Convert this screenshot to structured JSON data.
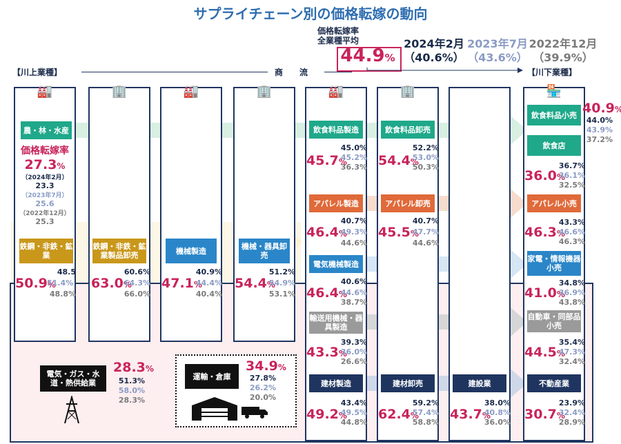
{
  "title": "サプライチェーン別の価格転嫁の動向",
  "average": {
    "label_line1": "価格転嫁率",
    "label_line2": "全業種平均",
    "value": "44.9",
    "unit": "%"
  },
  "periods": [
    {
      "label": "2024年2月",
      "value": "（40.6%）",
      "color": "#1a2a4a"
    },
    {
      "label": "2023年7月",
      "value": "（43.6%）",
      "color": "#8a9bc4"
    },
    {
      "label": "2022年12月",
      "value": "（39.9%）",
      "color": "#7a7a7a"
    }
  ],
  "flow": {
    "upstream": "【川上業種】",
    "middle": "商　　流",
    "downstream": "【川下業種】"
  },
  "legend": {
    "title": "価格転嫁率",
    "big": "27.3",
    "unit": "%",
    "l1": "（2024年2月）",
    "v1": "23.3",
    "l2": "（2023年7月）",
    "v2": "25.6",
    "l3": "（2022年12月）",
    "v3": "25.3"
  },
  "industries": {
    "agri": {
      "name": "農・林・水産"
    },
    "steel": {
      "name": "鉄鋼・非鉄・鉱業",
      "big": "50.9",
      "v24": "48.5",
      "v23": "51.4%",
      "v22": "48.8%"
    },
    "steel_ws": {
      "name": "鉄鋼・非鉄・鉱業製品卸売",
      "big": "63.0",
      "v24": "60.6%",
      "v23": "64.3%",
      "v22": "66.0%"
    },
    "machinery": {
      "name": "機械製造",
      "big": "47.1",
      "v24": "40.9%",
      "v23": "44.4%",
      "v22": "40.4%"
    },
    "machinery_ws": {
      "name": "機械・器具卸売",
      "big": "54.4",
      "v24": "51.2%",
      "v23": "54.9%",
      "v22": "53.1%"
    },
    "food_mfg": {
      "name": "飲食料品製造",
      "big": "45.7",
      "v24": "45.0%",
      "v23": "45.2%",
      "v22": "36.3%"
    },
    "food_ws": {
      "name": "飲食料品卸売",
      "big": "54.4",
      "v24": "52.2%",
      "v23": "53.0%",
      "v22": "50.3%"
    },
    "food_rt": {
      "name": "飲食料品小売",
      "big": "40.9",
      "v24": "44.0%",
      "v23": "43.9%",
      "v22": "37.2%"
    },
    "restaurant": {
      "name": "飲食店",
      "big": "36.0",
      "v24": "36.7%",
      "v23": "36.1%",
      "v22": "32.5%"
    },
    "apparel_mfg": {
      "name": "アパレル製造",
      "big": "46.4",
      "v24": "40.7%",
      "v23": "49.3%",
      "v22": "44.6%"
    },
    "apparel_ws": {
      "name": "アパレル卸売",
      "big": "45.5",
      "v24": "40.7%",
      "v23": "47.7%",
      "v22": "44.6%"
    },
    "apparel_rt": {
      "name": "アパレル小売",
      "big": "46.3",
      "v24": "43.3%",
      "v23": "46.6%",
      "v22": "46.3%"
    },
    "elec_mfg": {
      "name": "電気機械製造",
      "big": "46.4",
      "v24": "40.6%",
      "v23": "44.6%",
      "v22": "38.7%"
    },
    "elec_rt": {
      "name": "家電・情報機器小売",
      "big": "41.0",
      "v24": "34.8%",
      "v23": "36.9%",
      "v22": "43.8%"
    },
    "transport_mfg": {
      "name": "輸送用機械・器具製造",
      "big": "43.3",
      "v24": "39.3%",
      "v23": "36.0%",
      "v22": "26.6%"
    },
    "auto_rt": {
      "name": "自動車・同部品小売",
      "big": "44.5",
      "v24": "35.4%",
      "v23": "47.3%",
      "v22": "32.4%"
    },
    "bm_mfg": {
      "name": "建材製造",
      "big": "49.2",
      "v24": "43.4%",
      "v23": "49.5%",
      "v22": "44.8%"
    },
    "bm_ws": {
      "name": "建材卸売",
      "big": "62.4",
      "v24": "59.2%",
      "v23": "57.4%",
      "v22": "58.8%"
    },
    "construction": {
      "name": "建設業",
      "big": "43.7",
      "v24": "38.0%",
      "v23": "40.8%",
      "v22": "36.0%"
    },
    "realestate": {
      "name": "不動産業",
      "big": "30.7",
      "v24": "23.9%",
      "v23": "32.4%",
      "v22": "28.9%"
    },
    "utility": {
      "name": "電気・ガス・水道・熱供給業",
      "big": "28.3",
      "v24": "51.3%",
      "v23": "58.0%",
      "v22": "28.3%"
    },
    "logistics": {
      "name": "運輸・倉庫",
      "big": "34.9",
      "v24": "27.8%",
      "v23": "26.2%",
      "v22": "20.0%"
    }
  },
  "colors": {
    "accent": "#c8245a",
    "teal": "#1fa88a",
    "gold": "#c9971a",
    "blue": "#2a86c8",
    "orange": "#e06a3a",
    "gray": "#9a9a9a",
    "navy": "#1f3560",
    "title": "#2e6db0"
  }
}
